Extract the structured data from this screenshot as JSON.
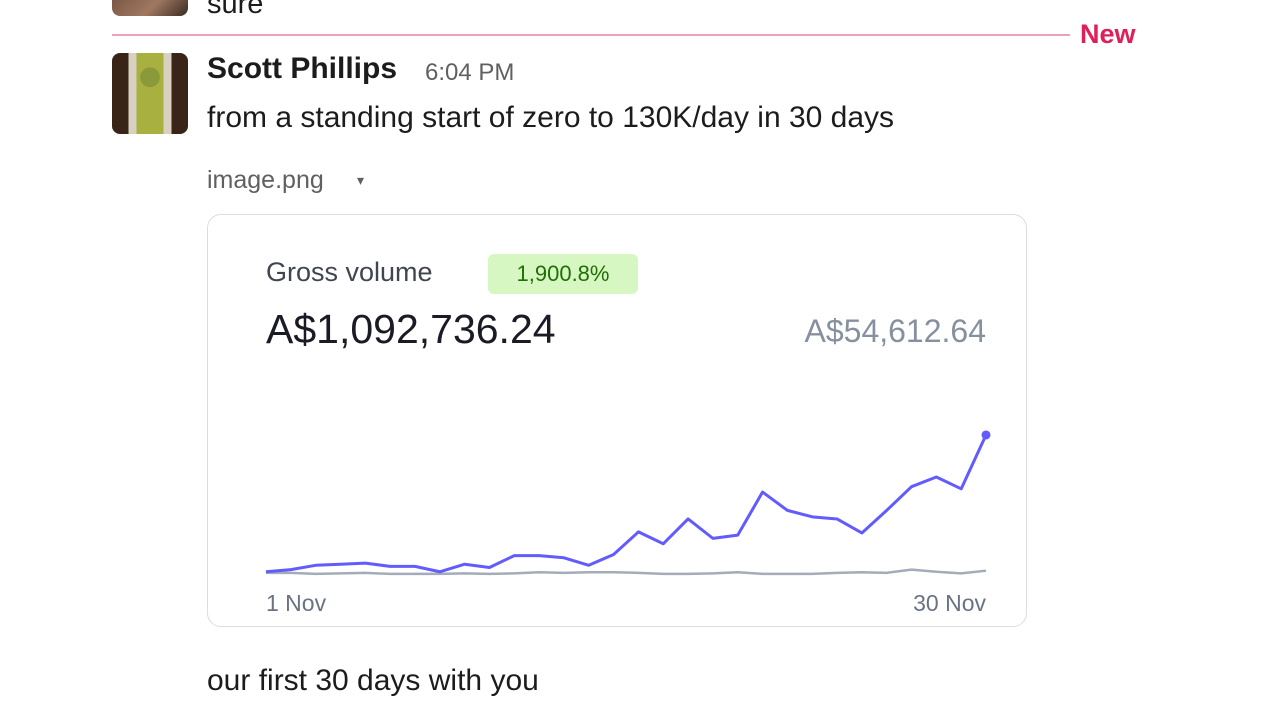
{
  "previous_message": {
    "text": "sure"
  },
  "divider": {
    "label": "New",
    "color": "#e01e5a"
  },
  "message": {
    "author": "Scott Phillips",
    "time": "6:04 PM",
    "text": "from a standing start of zero to 130K/day in 30 days",
    "attachment": {
      "filename": "image.png",
      "caret": "▾"
    },
    "followup": "our first 30 days with you"
  },
  "chart_data": {
    "type": "line",
    "title": "Gross volume",
    "badge": "1,900.8%",
    "total": "A$1,092,736.24",
    "previous_total": "A$54,612.64",
    "x_start_label": "1 Nov",
    "x_end_label": "30 Nov",
    "ylim": [
      0,
      140000
    ],
    "grid": false,
    "x": [
      1,
      2,
      3,
      4,
      5,
      6,
      7,
      8,
      9,
      10,
      11,
      12,
      13,
      14,
      15,
      16,
      17,
      18,
      19,
      20,
      21,
      22,
      23,
      24,
      25,
      26,
      27,
      28,
      29,
      30
    ],
    "series": [
      {
        "color": "#635bff",
        "values": [
          3000,
          5000,
          9000,
          10000,
          11000,
          8000,
          8000,
          3000,
          10000,
          7000,
          18000,
          18000,
          16000,
          9000,
          19000,
          40000,
          29000,
          52000,
          34000,
          37000,
          77000,
          60000,
          54000,
          52000,
          39000,
          60000,
          82000,
          91000,
          80000,
          130000
        ]
      },
      {
        "color": "#a3acb9",
        "values": [
          2000,
          2000,
          1000,
          1500,
          2000,
          1000,
          1000,
          1000,
          1500,
          1000,
          1500,
          2500,
          2000,
          2500,
          2500,
          2000,
          1000,
          1000,
          1500,
          2500,
          1000,
          1000,
          1000,
          2000,
          2500,
          2000,
          5000,
          3000,
          1500,
          4000
        ]
      }
    ]
  }
}
